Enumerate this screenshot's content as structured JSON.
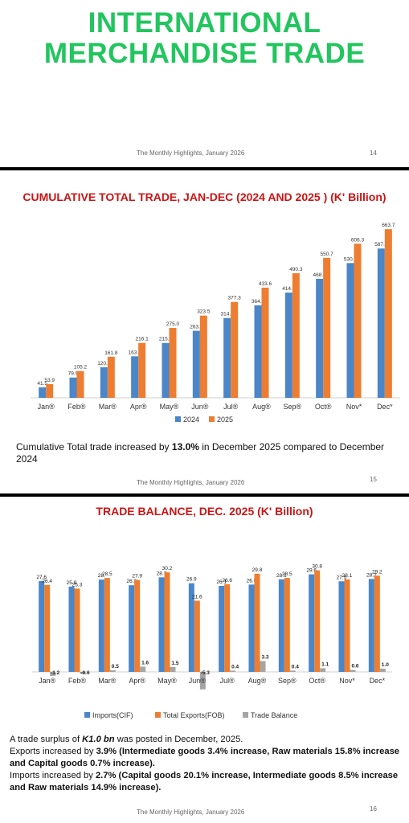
{
  "slide1": {
    "title_line1": "INTERNATIONAL",
    "title_line2": "MERCHANDISE TRADE",
    "footer": "The Monthly Highlights, January 2026",
    "page": "14"
  },
  "slide2": {
    "title": "CUMULATIVE TOTAL TRADE, JAN-DEC (2024 AND 2025 ) (K' Billion)",
    "caption_pre": "Cumulative Total trade increased by ",
    "caption_bold": "13.0%",
    "caption_post": " in December 2025 compared to December 2024",
    "footer": "The Monthly Highlights, January 2026",
    "page": "15"
  },
  "slide3": {
    "title": "TRADE BALANCE, DEC. 2025  (K' Billion)",
    "line1_pre": "A trade surplus of ",
    "line1_bold": "K1.0 bn",
    "line1_post": " was posted in December, 2025.",
    "line2_pre": "Exports increased by ",
    "line2_bold": "3.9% (Intermediate goods 3.4% increase, Raw materials 15.8% increase and Capital goods 0.7% increase).",
    "line3_pre": "Imports increased by ",
    "line3_bold": "2.7% (Capital goods 20.1% increase, Intermediate goods 8.5% increase and Raw materials 14.9% increase).",
    "footer": "The Monthly Highlights, January 2026",
    "page": "16"
  },
  "colors": {
    "blue": "#4a86c8",
    "orange": "#ed7d31",
    "gray": "#a5a5a5",
    "green_title": "#22c55e",
    "red_title": "#cc1414"
  },
  "chart_data": [
    {
      "type": "bar",
      "title": "CUMULATIVE TOTAL TRADE, JAN-DEC (2024 AND 2025 ) (K' Billion)",
      "categories": [
        "Jan®",
        "Feb®",
        "Mar®",
        "Apr®",
        "May®",
        "Jun®",
        "Jul®",
        "Aug®",
        "Sep®",
        "Oct®",
        "Nov*",
        "Dec*"
      ],
      "series": [
        {
          "name": "2024",
          "values": [
            41.5,
            79.9,
            120.3,
            163.4,
            215.9,
            263.9,
            314.2,
            364.2,
            414.2,
            468.4,
            530.3,
            587.6
          ]
        },
        {
          "name": "2025",
          "values": [
            53.9,
            105.2,
            161.8,
            216.1,
            275.0,
            323.5,
            377.3,
            433.6,
            490.3,
            550.7,
            606.3,
            663.7
          ]
        }
      ],
      "ylim": [
        0,
        680
      ],
      "grid": false,
      "legend": "bottom"
    },
    {
      "type": "bar",
      "title": "TRADE BALANCE, DEC. 2025  (K' Billion)",
      "categories": [
        "Jan®",
        "Feb®",
        "Mar®",
        "Apr®",
        "May®",
        "Jun®",
        "Jul®",
        "Aug®",
        "Sep®",
        "Oct®",
        "Nov*",
        "Dec*"
      ],
      "series": [
        {
          "name": "Imports(CIF)",
          "values": [
            27.6,
            25.9,
            28.0,
            26.3,
            28.7,
            26.9,
            26.1,
            26.5,
            28.1,
            29.6,
            27.5,
            28.2
          ]
        },
        {
          "name": "Total Exports(FOB)",
          "values": [
            26.4,
            25.3,
            28.5,
            27.9,
            30.2,
            21.6,
            26.6,
            29.8,
            28.5,
            30.8,
            28.1,
            29.2
          ]
        },
        {
          "name": "Trade Balance",
          "values": [
            -1.2,
            -0.6,
            0.5,
            1.6,
            1.5,
            -5.3,
            0.4,
            3.3,
            0.4,
            1.1,
            0.6,
            1.0
          ]
        }
      ],
      "value_labels": {
        "Imports(CIF)": [
          "27.6",
          "25.9",
          "28.",
          "26.3",
          "28.7",
          "26.9",
          "26.1",
          "26.5",
          "28.1",
          "29.6",
          "27.5",
          "28.2"
        ],
        "Total Exports(FOB)": [
          "26.4",
          "25.3",
          "28.5",
          "27.9",
          "30.2",
          "21.6",
          "26.6",
          "29.8",
          "28.5",
          "30.8",
          "28.1",
          "29.2"
        ],
        "Trade Balance": [
          "-1.2",
          "-0.6",
          "0.5",
          "1.6",
          "1.5",
          "-5.3",
          "0.4",
          "3.3",
          "0.4",
          "1.1",
          "0.6",
          "1.0"
        ]
      },
      "ylim": [
        -6,
        32
      ],
      "grid": false,
      "legend": "bottom"
    }
  ]
}
